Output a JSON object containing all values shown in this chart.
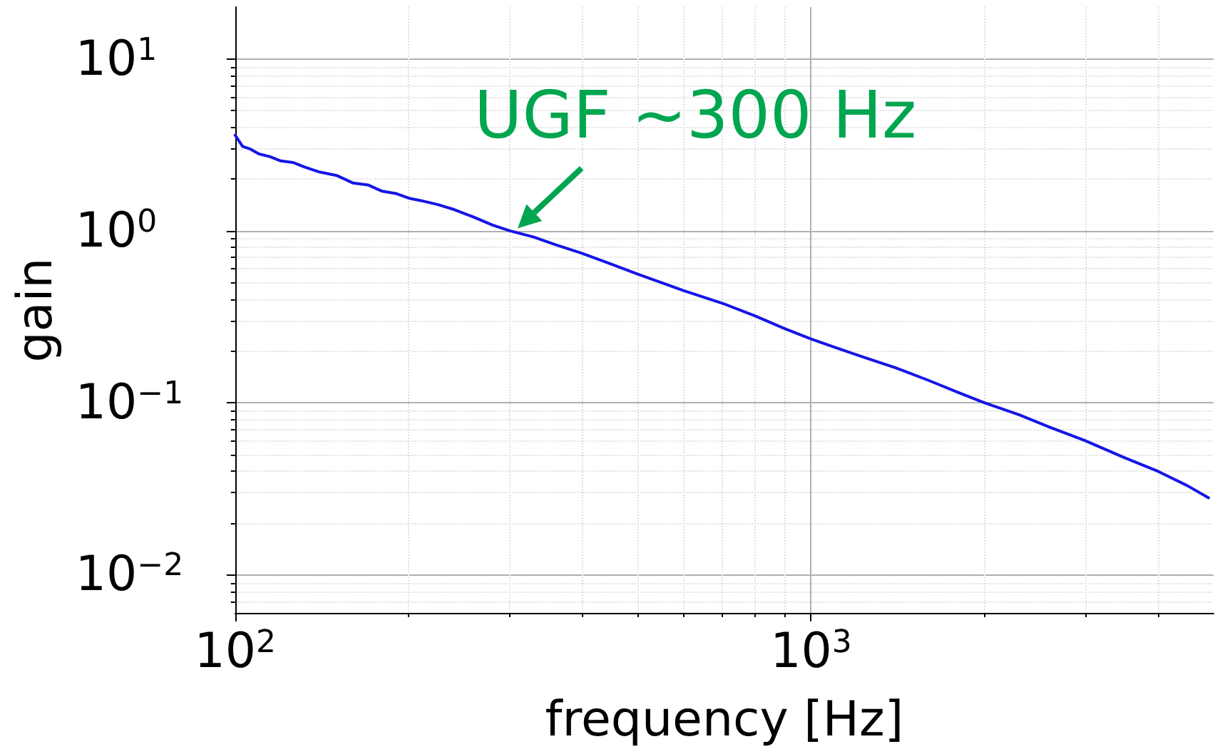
{
  "chart_data": {
    "type": "line",
    "xlabel": "frequency [Hz]",
    "ylabel": "gain",
    "log": "xy",
    "grid": true,
    "marker": "none",
    "line_style": "solid",
    "xlim": [
      100,
      5000
    ],
    "ylim": [
      0.006,
      20
    ],
    "xticks": [
      {
        "value": 100,
        "label": "10$^{2}$"
      },
      {
        "value": 1000,
        "label": "10$^{3}$"
      }
    ],
    "yticks": [
      {
        "value": 0.01,
        "label": "10$^{−2}$"
      },
      {
        "value": 0.1,
        "label": "10$^{−1}$"
      },
      {
        "value": 1,
        "label": "10$^{0}$"
      },
      {
        "value": 10,
        "label": "10$^{1}$"
      }
    ],
    "annotations": [
      {
        "text": "UGF ~300 Hz",
        "x": 300,
        "y": 1
      }
    ],
    "x": [
      100,
      103,
      106,
      110,
      115,
      120,
      126,
      132,
      140,
      150,
      160,
      170,
      180,
      190,
      200,
      210,
      225,
      240,
      260,
      280,
      300,
      330,
      360,
      400,
      450,
      500,
      550,
      600,
      700,
      800,
      900,
      1000,
      1100,
      1200,
      1400,
      1600,
      1800,
      2000,
      2300,
      2600,
      3000,
      3500,
      4000,
      4500,
      4900
    ],
    "series": [
      {
        "color": "#1515e6",
        "values": [
          3.6,
          3.1,
          3.0,
          2.8,
          2.7,
          2.55,
          2.5,
          2.35,
          2.2,
          2.1,
          1.9,
          1.85,
          1.7,
          1.65,
          1.55,
          1.5,
          1.42,
          1.33,
          1.2,
          1.08,
          1.0,
          0.92,
          0.83,
          0.74,
          0.64,
          0.56,
          0.5,
          0.45,
          0.38,
          0.32,
          0.27,
          0.235,
          0.21,
          0.19,
          0.16,
          0.135,
          0.115,
          0.1,
          0.085,
          0.072,
          0.06,
          0.048,
          0.04,
          0.033,
          0.028
        ]
      }
    ]
  }
}
